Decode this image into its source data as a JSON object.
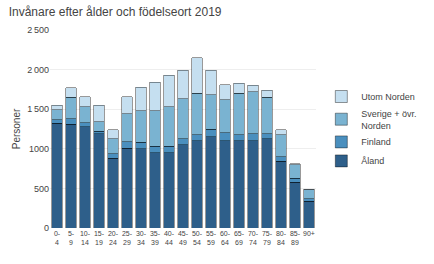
{
  "chart_data": {
    "type": "bar",
    "title": "Invånare efter ålder och födelseort 2019",
    "y_label": "Personer",
    "categories": [
      "0-\n4",
      "5-\n9",
      "10-\n14",
      "15-\n19",
      "20-\n24",
      "25-\n29",
      "30-\n34",
      "35-\n39",
      "40-\n44",
      "45-\n49",
      "50-\n54",
      "55-\n59",
      "60-\n64",
      "65-\n69",
      "70-\n74",
      "75-\n79",
      "80-\n84",
      "85-\n89",
      "90+"
    ],
    "series": [
      {
        "name": "Åland",
        "color": "#2e5f8a",
        "values": [
          1320,
          1310,
          1280,
          1190,
          880,
          1010,
          1000,
          950,
          950,
          1050,
          1100,
          1150,
          1100,
          1100,
          1100,
          1130,
          840,
          580,
          340
        ]
      },
      {
        "name": "Finland",
        "color": "#4a8fbe",
        "values": [
          50,
          70,
          50,
          30,
          60,
          80,
          80,
          80,
          80,
          80,
          80,
          100,
          100,
          80,
          90,
          60,
          60,
          50,
          30
        ]
      },
      {
        "name": "Sverige + övr.\nNorden",
        "color": "#7ab3d1",
        "values": [
          120,
          270,
          200,
          120,
          190,
          350,
          400,
          450,
          500,
          500,
          520,
          430,
          420,
          520,
          530,
          460,
          280,
          170,
          110
        ]
      },
      {
        "name": "Utom Norden",
        "color": "#c5dff0",
        "values": [
          60,
          120,
          130,
          210,
          110,
          220,
          300,
          360,
          400,
          360,
          450,
          310,
          190,
          130,
          80,
          90,
          60,
          10,
          10
        ]
      }
    ],
    "stacked": true,
    "ylim": [
      0,
      2500
    ],
    "yticks": [
      0,
      500,
      1000,
      {
        "value": 1500,
        "label": "1 500"
      },
      {
        "value": 2000,
        "label": "2 000"
      },
      {
        "value": 2500,
        "label": "2 500"
      }
    ],
    "grid": true,
    "legend": "right"
  }
}
